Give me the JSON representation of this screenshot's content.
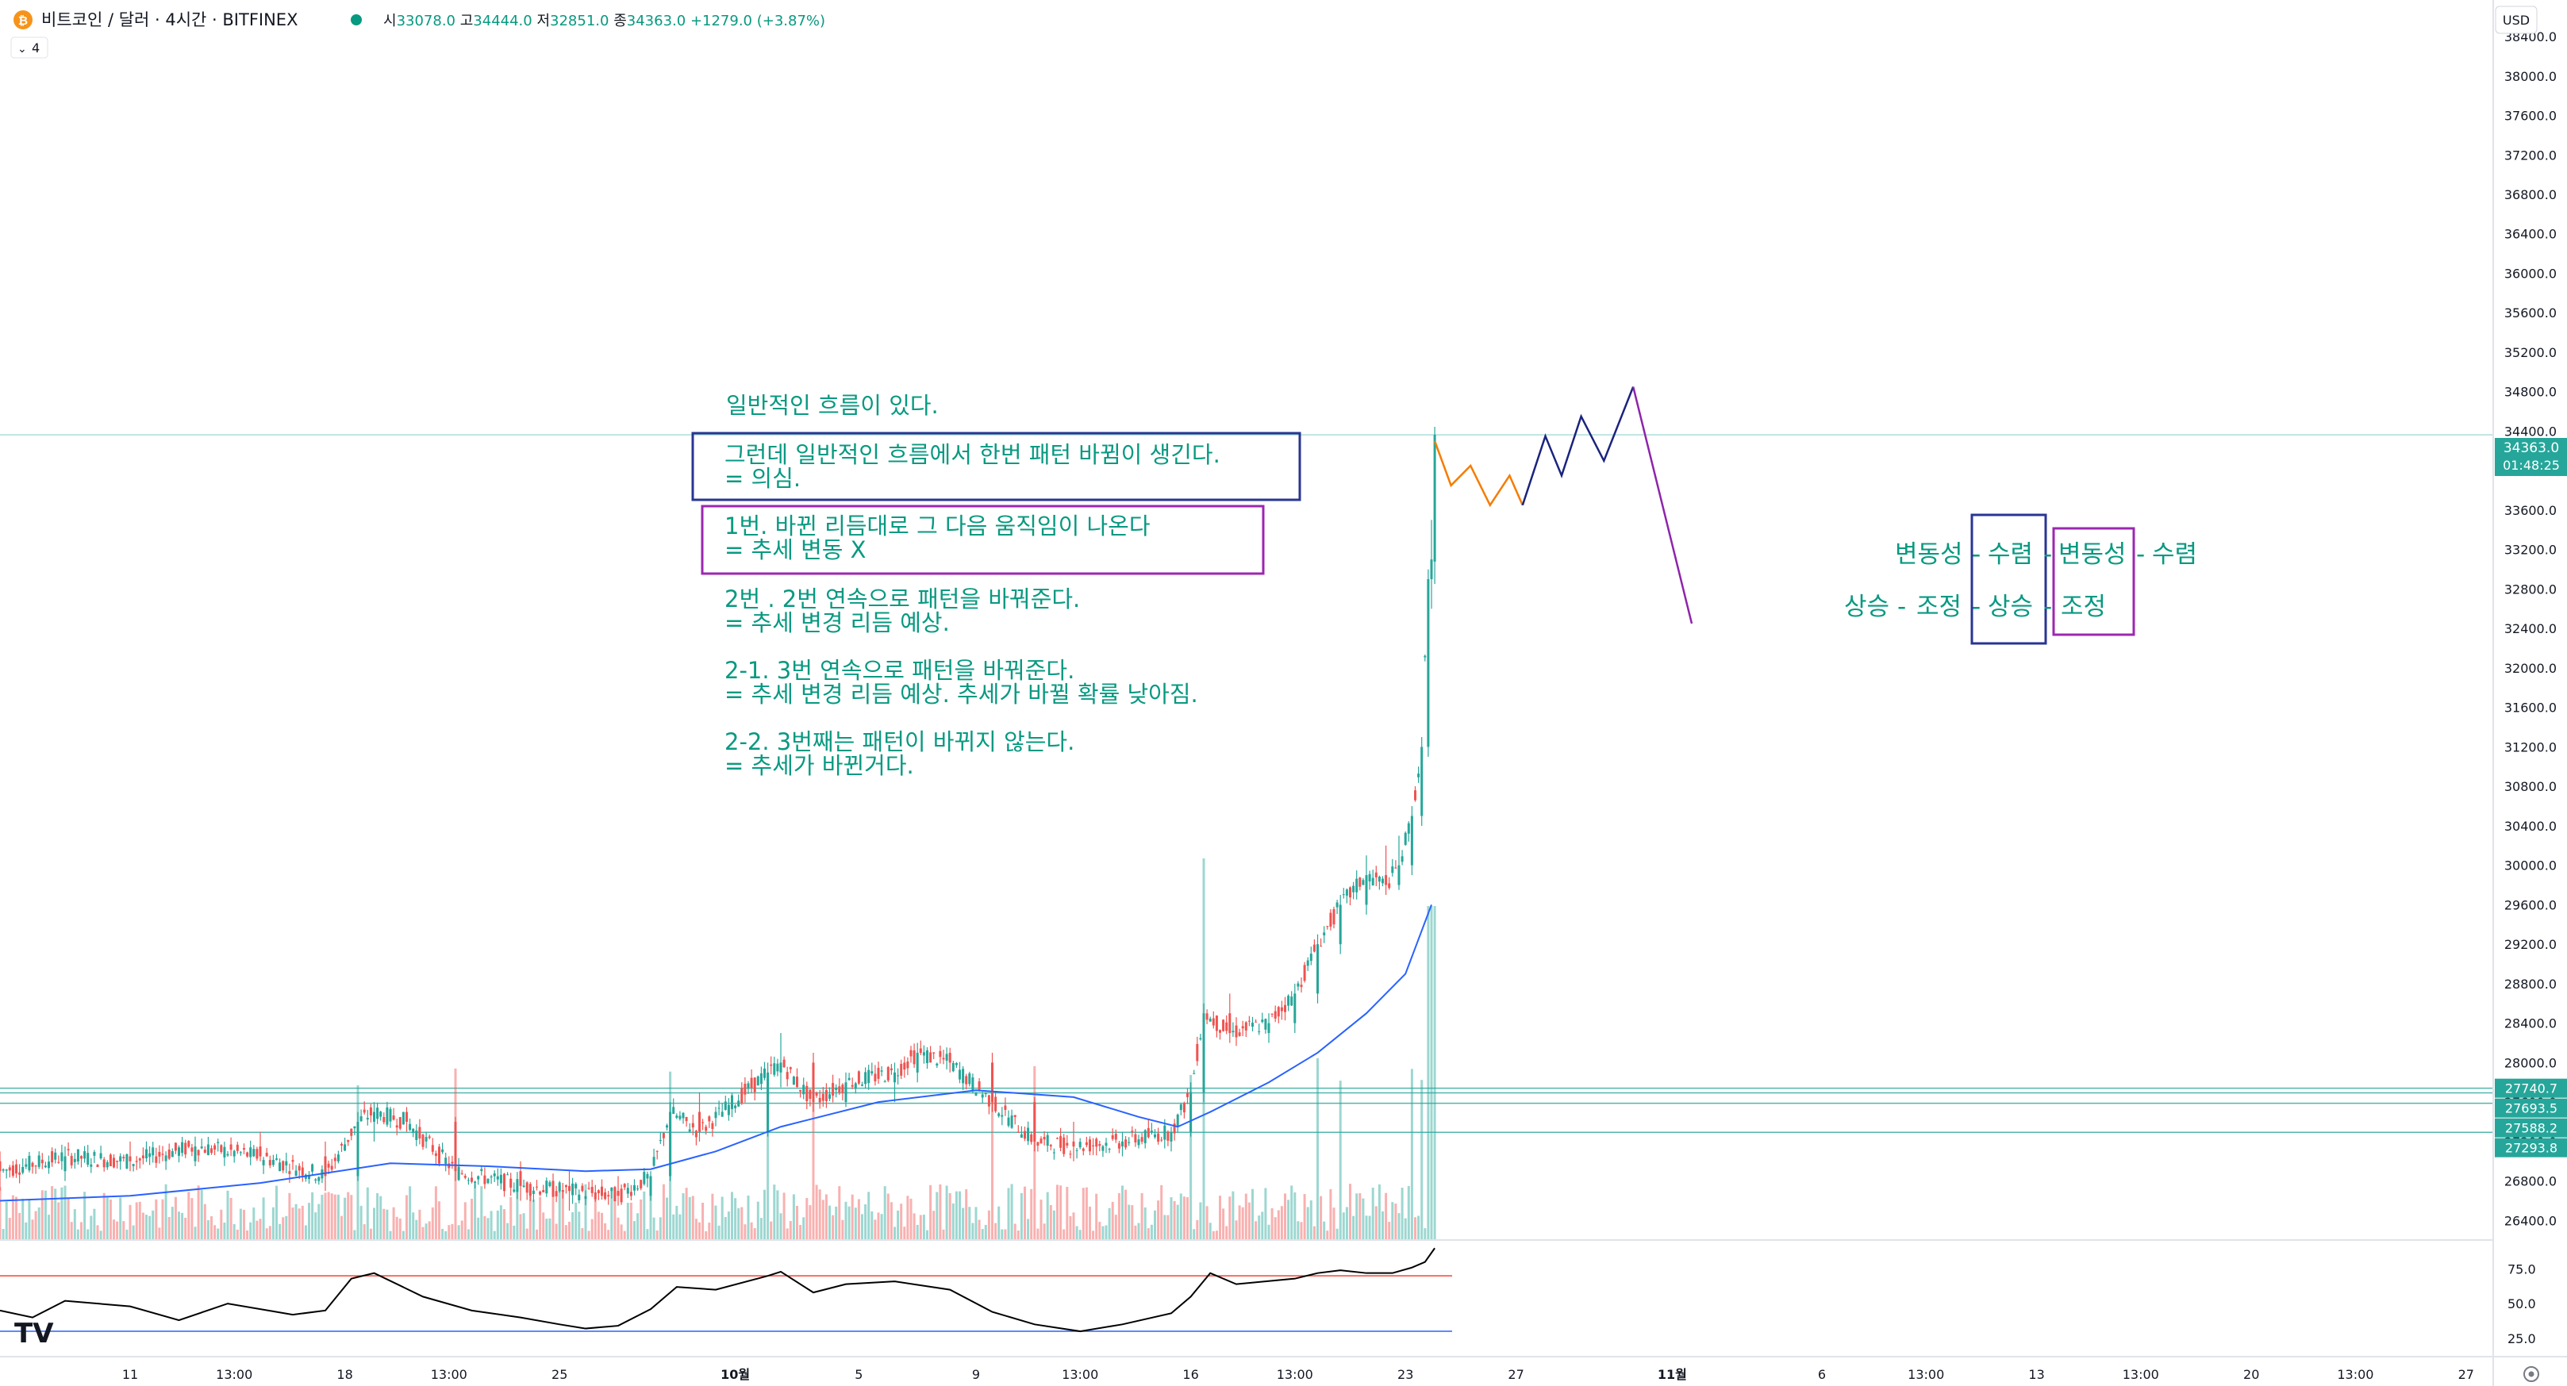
{
  "header": {
    "coin_icon": "bitcoin-icon",
    "symbol_title": "비트코인 / 달러 · 4시간 · BITFINEX",
    "ohlc": {
      "open_label": "시",
      "open": "33078.0",
      "high_label": "고",
      "high": "34444.0",
      "low_label": "저",
      "low": "32851.0",
      "close_label": "종",
      "close": "34363.0",
      "change": "+1279.0 (+3.87%)"
    },
    "indicator_count": "4",
    "currency": "USD"
  },
  "notes": {
    "line1": "일반적인 흐름이 있다.",
    "box1_line1": "그런데 일반적인 흐름에서 한번 패턴 바뀜이 생긴다.",
    "box1_line2": "= 의심.",
    "box2_line1": "1번. 바뀐 리듬대로 그 다음 움직임이 나온다",
    "box2_line2": "= 추세 변동 X",
    "p3_line1": "2번 . 2번 연속으로 패턴을 바꿔준다.",
    "p3_line2": "= 추세 변경 리듬 예상.",
    "p4_line1": "2-1. 3번 연속으로 패턴을 바꿔준다.",
    "p4_line2": "= 추세 변경 리듬 예상. 추세가 바뀔 확률 낮아짐.",
    "p5_line1": "2-2. 3번째는 패턴이 바뀌지 않는다.",
    "p5_line2": "= 추세가 바뀐거다."
  },
  "diagram": {
    "row1": [
      "변동성",
      "수렴",
      "변동성",
      "수렴"
    ],
    "row2": [
      "상승",
      "조정",
      "상승",
      "조정"
    ],
    "separator": "-"
  },
  "price_labels": {
    "current": "34363.0",
    "countdown": "01:48:25",
    "levels": [
      "27740.7",
      "27693.5",
      "27588.2",
      "27293.8"
    ]
  },
  "colors": {
    "up": "#26a69a",
    "down": "#ef5350",
    "ma": "#2962ff",
    "note_text": "#089981",
    "box_blue": "#283593",
    "box_purple": "#9c27b0",
    "path_orange": "#f57c00",
    "path_navy": "#1a237e",
    "path_purple": "#8e24aa",
    "rsi_upper": "#f44336",
    "rsi_lower": "#2962ff"
  },
  "chart_data": {
    "type": "candlestick",
    "interval": "4h",
    "y_axis": {
      "ticks": [
        26400,
        26800,
        27200,
        27600,
        28000,
        28400,
        28800,
        29200,
        29600,
        30000,
        30400,
        30800,
        31200,
        31600,
        32000,
        32400,
        32800,
        33200,
        33600,
        34000,
        34400,
        34800,
        35200,
        35600,
        36000,
        36400,
        36800,
        37200,
        37600,
        38000,
        38400
      ],
      "range": [
        26210,
        38770
      ]
    },
    "x_axis": {
      "tick_labels": [
        "11",
        "13:00",
        "18",
        "13:00",
        "25",
        "10월",
        "5",
        "9",
        "13:00",
        "16",
        "13:00",
        "23",
        "27",
        "11월",
        "6",
        "13:00",
        "13",
        "13:00",
        "20",
        "13:00",
        "27"
      ],
      "tick_index": [
        40,
        72,
        106,
        138,
        172,
        226,
        264,
        300,
        332,
        366,
        398,
        432,
        466,
        514,
        560,
        592,
        626,
        658,
        692,
        724,
        758
      ]
    },
    "candles": [
      [
        0,
        27000,
        27100,
        26700,
        26900
      ],
      [
        20,
        26900,
        27150,
        26800,
        27050
      ],
      [
        40,
        27050,
        27200,
        26900,
        27000
      ],
      [
        60,
        27000,
        27250,
        26950,
        27150
      ],
      [
        80,
        27150,
        27300,
        27000,
        27050
      ],
      [
        100,
        27050,
        27200,
        26700,
        26850
      ],
      [
        110,
        26850,
        27500,
        26800,
        27400
      ],
      [
        115,
        27400,
        27600,
        27200,
        27500
      ],
      [
        125,
        27500,
        27550,
        27300,
        27400
      ],
      [
        140,
        27400,
        27450,
        26800,
        26900
      ],
      [
        160,
        26900,
        27000,
        26600,
        26750
      ],
      [
        175,
        26750,
        26900,
        26500,
        26700
      ],
      [
        190,
        26700,
        26850,
        26550,
        26650
      ],
      [
        200,
        26650,
        26900,
        26600,
        26850
      ],
      [
        206,
        26850,
        27600,
        26800,
        27500
      ],
      [
        215,
        27500,
        27700,
        27200,
        27300
      ],
      [
        236,
        27300,
        28000,
        27250,
        27900
      ],
      [
        240,
        27900,
        28300,
        27750,
        28000
      ],
      [
        250,
        28000,
        28100,
        27500,
        27600
      ],
      [
        260,
        27600,
        27900,
        27550,
        27800
      ],
      [
        275,
        27800,
        28000,
        27600,
        27900
      ],
      [
        282,
        27900,
        28200,
        27800,
        28100
      ],
      [
        292,
        28100,
        28150,
        27900,
        28000
      ],
      [
        305,
        28000,
        28100,
        27500,
        27600
      ],
      [
        318,
        27600,
        27650,
        27100,
        27200
      ],
      [
        330,
        27200,
        27400,
        27000,
        27150
      ],
      [
        345,
        27150,
        27300,
        27050,
        27200
      ],
      [
        360,
        27200,
        27350,
        27100,
        27300
      ],
      [
        366,
        27300,
        27800,
        27250,
        27700
      ],
      [
        370,
        27700,
        28600,
        27600,
        28500
      ],
      [
        378,
        28500,
        28700,
        28200,
        28300
      ],
      [
        390,
        28300,
        28500,
        28200,
        28400
      ],
      [
        398,
        28400,
        28800,
        28300,
        28700
      ],
      [
        405,
        28700,
        29300,
        28600,
        29200
      ],
      [
        412,
        29200,
        29700,
        29100,
        29600
      ],
      [
        420,
        29600,
        30100,
        29500,
        29900
      ],
      [
        426,
        29900,
        30200,
        29700,
        29800
      ],
      [
        430,
        29800,
        30300,
        29750,
        30000
      ],
      [
        434,
        30000,
        30600,
        29900,
        30500
      ],
      [
        437,
        30500,
        31300,
        30400,
        31200
      ],
      [
        439,
        31200,
        33000,
        31100,
        32900
      ],
      [
        440,
        32900,
        33500,
        32600,
        33100
      ],
      [
        441,
        33078,
        34444,
        32851,
        34363
      ]
    ],
    "moving_average": {
      "name": "MA",
      "points": [
        [
          0,
          26600
        ],
        [
          40,
          26650
        ],
        [
          80,
          26780
        ],
        [
          120,
          26980
        ],
        [
          150,
          26950
        ],
        [
          180,
          26900
        ],
        [
          200,
          26920
        ],
        [
          220,
          27100
        ],
        [
          240,
          27350
        ],
        [
          270,
          27600
        ],
        [
          300,
          27720
        ],
        [
          330,
          27650
        ],
        [
          350,
          27450
        ],
        [
          362,
          27350
        ],
        [
          372,
          27500
        ],
        [
          390,
          27800
        ],
        [
          405,
          28100
        ],
        [
          420,
          28500
        ],
        [
          432,
          28900
        ],
        [
          440,
          29600
        ]
      ]
    },
    "rsi": {
      "range": [
        14,
        93
      ],
      "upper_band": 70,
      "lower_band": 30,
      "ticks": [
        25,
        50,
        75
      ],
      "points": [
        [
          0,
          45
        ],
        [
          10,
          40
        ],
        [
          20,
          52
        ],
        [
          40,
          48
        ],
        [
          55,
          38
        ],
        [
          70,
          50
        ],
        [
          90,
          42
        ],
        [
          100,
          45
        ],
        [
          108,
          68
        ],
        [
          115,
          72
        ],
        [
          130,
          55
        ],
        [
          145,
          45
        ],
        [
          160,
          40
        ],
        [
          172,
          35
        ],
        [
          180,
          32
        ],
        [
          190,
          34
        ],
        [
          200,
          46
        ],
        [
          208,
          62
        ],
        [
          220,
          60
        ],
        [
          236,
          70
        ],
        [
          240,
          73
        ],
        [
          250,
          58
        ],
        [
          260,
          64
        ],
        [
          275,
          66
        ],
        [
          292,
          60
        ],
        [
          305,
          44
        ],
        [
          318,
          35
        ],
        [
          332,
          30
        ],
        [
          345,
          35
        ],
        [
          360,
          43
        ],
        [
          366,
          55
        ],
        [
          372,
          72
        ],
        [
          380,
          64
        ],
        [
          398,
          68
        ],
        [
          405,
          72
        ],
        [
          412,
          74
        ],
        [
          420,
          72
        ],
        [
          428,
          72
        ],
        [
          434,
          76
        ],
        [
          438,
          80
        ],
        [
          441,
          90
        ]
      ]
    },
    "projection": {
      "orange": [
        [
          441,
          34300
        ],
        [
          446,
          33850
        ],
        [
          452,
          34050
        ],
        [
          458,
          33650
        ],
        [
          464,
          33950
        ],
        [
          468,
          33650
        ]
      ],
      "navy": [
        [
          468,
          33650
        ],
        [
          475,
          34350
        ],
        [
          480,
          33950
        ],
        [
          486,
          34550
        ],
        [
          493,
          34100
        ],
        [
          502,
          34850
        ]
      ],
      "purple": [
        [
          502,
          34850
        ],
        [
          520,
          32450
        ]
      ]
    }
  }
}
